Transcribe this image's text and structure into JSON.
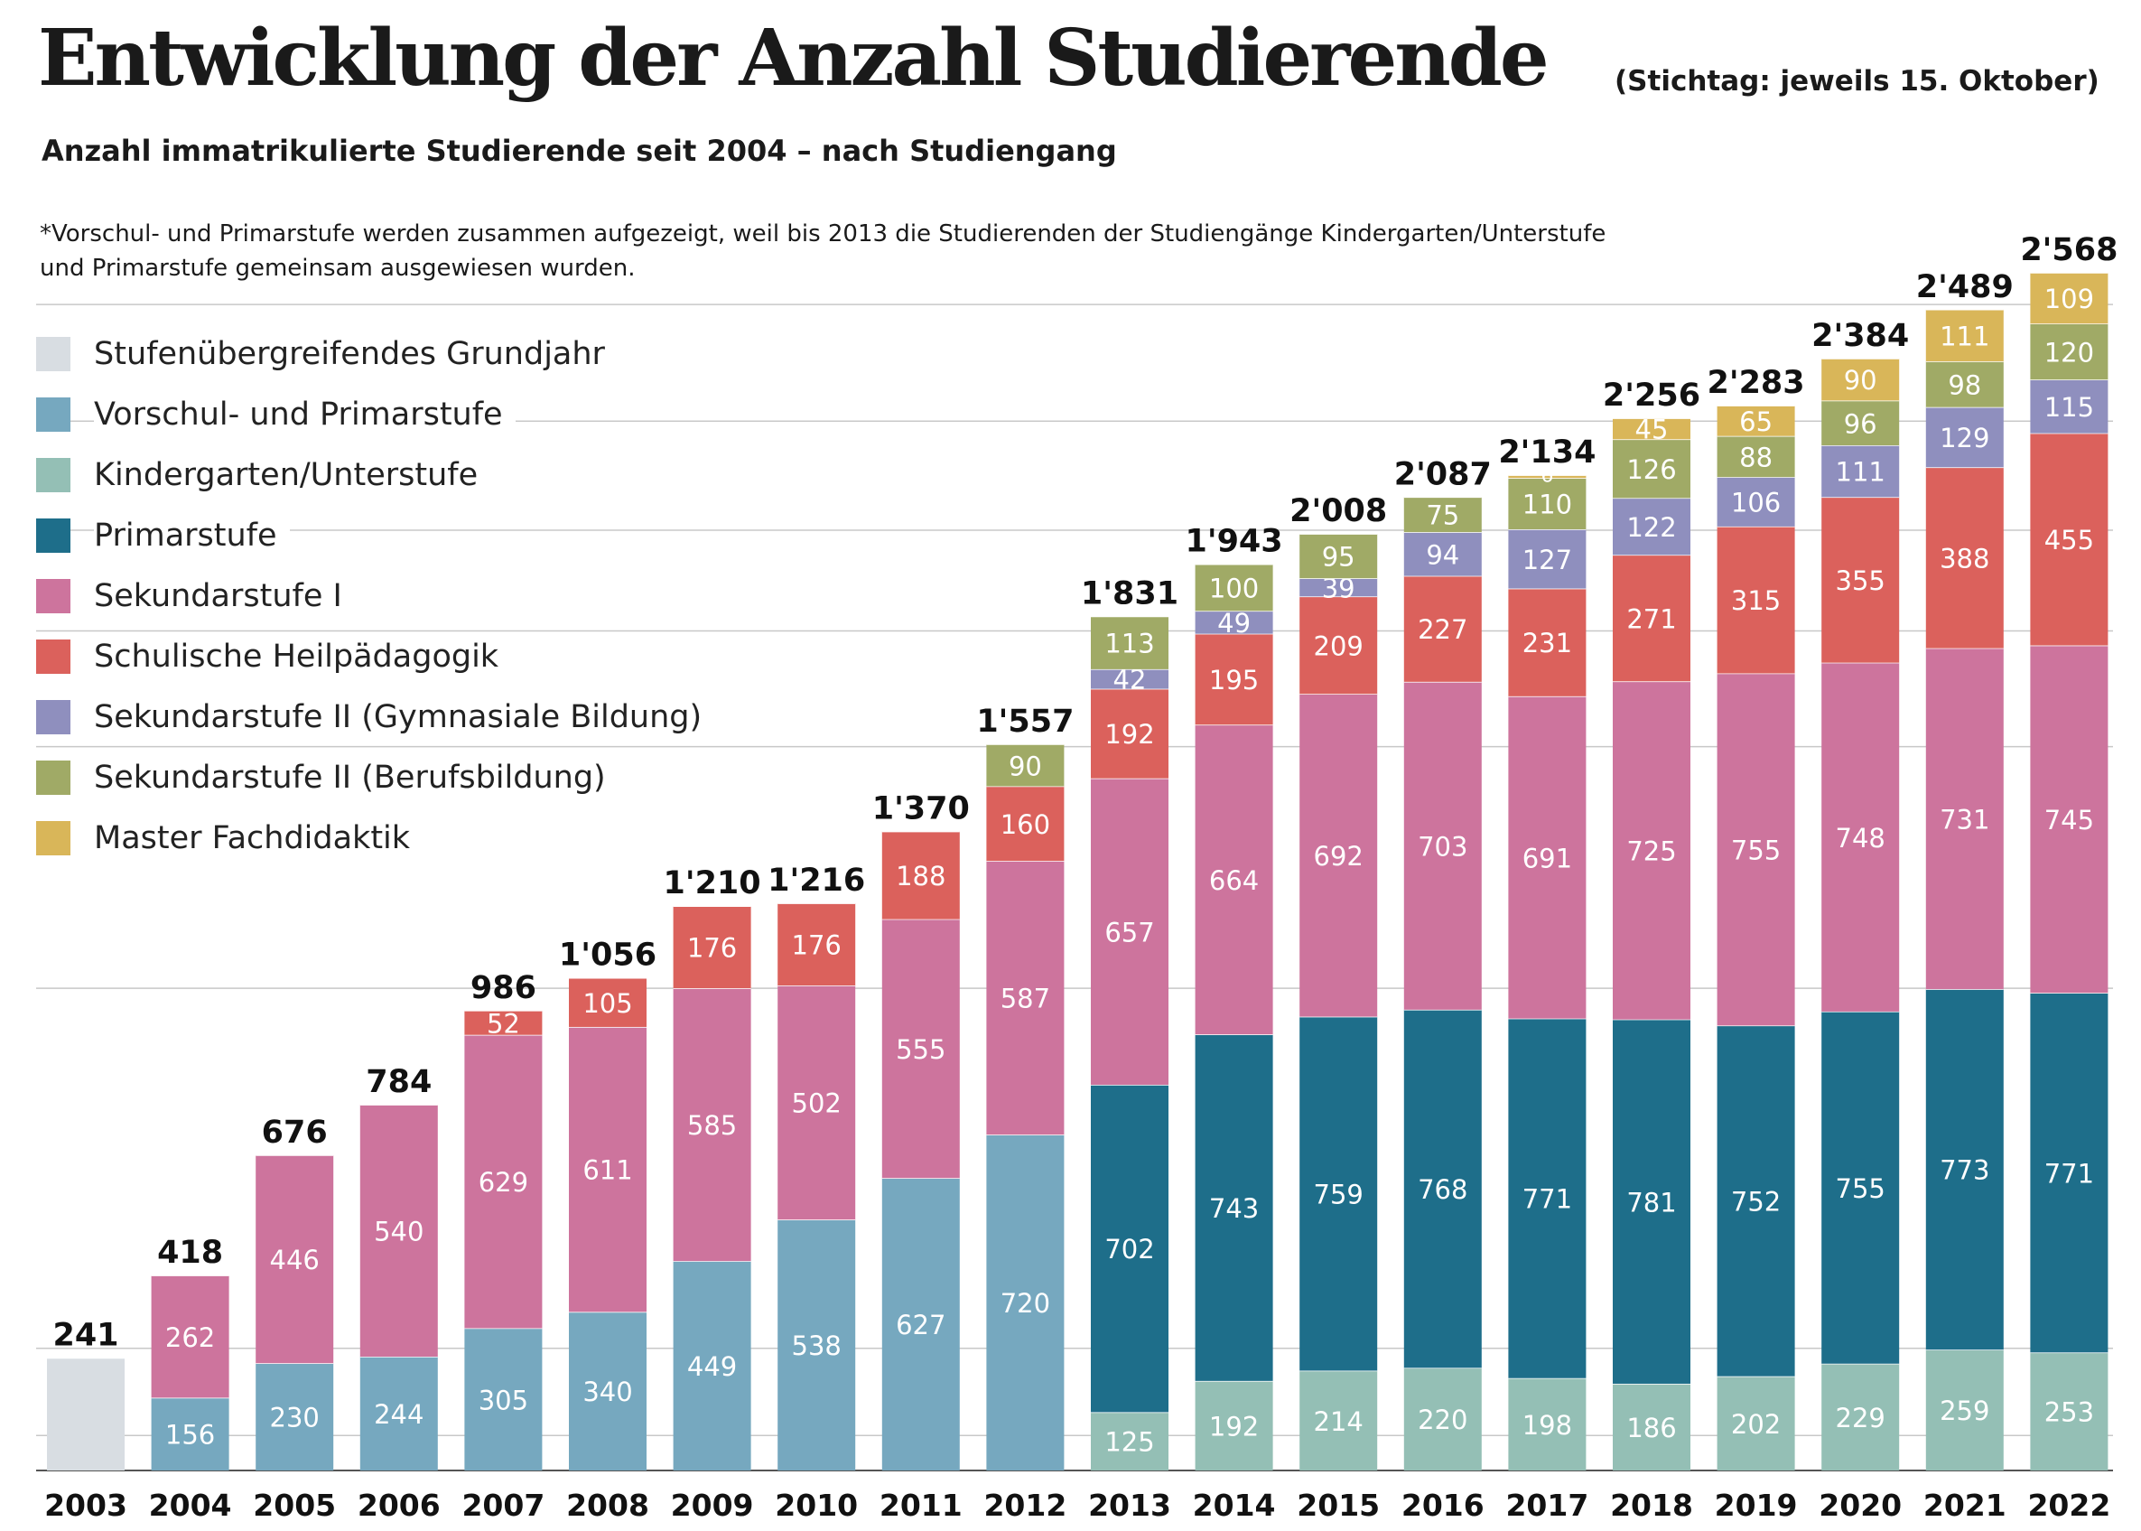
{
  "title": "Entwicklung der Anzahl Studierende",
  "note": "(Stichtag: jeweils 15. Oktober)",
  "subtitle": "Anzahl immatrikulierte Studierende seit 2004 – nach Studiengang",
  "footnote": "*Vorschul- und Primarstufe werden zusammen aufgezeigt, weil bis 2013 die Studierenden der Studiengänge Kindergarten/Unterstufe und Primarstufe gemeinsam ausgewiesen wurden.",
  "chart_data": {
    "type": "bar",
    "stacked": true,
    "title": "Entwicklung der Anzahl Studierende",
    "subtitle": "Anzahl immatrikulierte Studierende seit 2004 – nach Studiengang",
    "categories": [
      "2003",
      "2004",
      "2005",
      "2006",
      "2007",
      "2008",
      "2009",
      "2010",
      "2011",
      "2012",
      "2013",
      "2014",
      "2015",
      "2016",
      "2017",
      "2018",
      "2019",
      "2020",
      "2021",
      "2022"
    ],
    "totals": [
      "241",
      "418",
      "676",
      "784",
      "986",
      "1'056",
      "1'210",
      "1'216",
      "1'370",
      "1'557",
      "1'831",
      "1'943",
      "2'008",
      "2'087",
      "2'134",
      "2'256",
      "2'283",
      "2'384",
      "2'489",
      "2'568"
    ],
    "ylim": [
      0,
      2700
    ],
    "grid": true,
    "legend_position": "left",
    "series": [
      {
        "name": "Stufenübergreifendes Grundjahr",
        "color": "#d8dde2",
        "label_color": "#ffffff",
        "values": [
          241,
          null,
          null,
          null,
          null,
          null,
          null,
          null,
          null,
          null,
          null,
          null,
          null,
          null,
          null,
          null,
          null,
          null,
          null,
          null
        ]
      },
      {
        "name": "Vorschul- und Primarstufe",
        "color": "#76a8bf",
        "label_color": "#ffffff",
        "values": [
          null,
          156,
          230,
          244,
          305,
          340,
          449,
          538,
          627,
          720,
          null,
          null,
          null,
          null,
          null,
          null,
          null,
          null,
          null,
          null
        ]
      },
      {
        "name": "Kindergarten/Unterstufe",
        "color": "#94bfb5",
        "label_color": "#ffffff",
        "values": [
          null,
          null,
          null,
          null,
          null,
          null,
          null,
          null,
          null,
          null,
          125,
          192,
          214,
          220,
          198,
          186,
          202,
          229,
          259,
          253
        ]
      },
      {
        "name": "Primarstufe",
        "color": "#1e6e8a",
        "label_color": "#ffffff",
        "values": [
          null,
          null,
          null,
          null,
          null,
          null,
          null,
          null,
          null,
          null,
          702,
          743,
          759,
          768,
          771,
          781,
          752,
          755,
          773,
          771
        ]
      },
      {
        "name": "Sekundarstufe I",
        "color": "#cd749d",
        "label_color": "#ffffff",
        "values": [
          null,
          262,
          446,
          540,
          629,
          611,
          585,
          502,
          555,
          587,
          657,
          664,
          692,
          703,
          691,
          725,
          755,
          748,
          731,
          745
        ]
      },
      {
        "name": "Schulische Heilpädagogik",
        "color": "#db615c",
        "label_color": "#ffffff",
        "values": [
          null,
          null,
          null,
          null,
          52,
          105,
          176,
          176,
          188,
          160,
          192,
          195,
          209,
          227,
          231,
          271,
          315,
          355,
          388,
          455
        ]
      },
      {
        "name": "Sekundarstufe II (Gymnasiale Bildung)",
        "color": "#8f8fbe",
        "label_color": "#ffffff",
        "values": [
          null,
          null,
          null,
          null,
          null,
          null,
          null,
          null,
          null,
          null,
          42,
          49,
          39,
          94,
          127,
          122,
          106,
          111,
          129,
          115
        ]
      },
      {
        "name": "Sekundarstufe II (Berufsbildung)",
        "color": "#a0aa66",
        "label_color": "#ffffff",
        "values": [
          null,
          null,
          null,
          null,
          null,
          null,
          null,
          null,
          null,
          90,
          113,
          100,
          95,
          75,
          110,
          126,
          88,
          96,
          98,
          120
        ]
      },
      {
        "name": "Master Fachdidaktik",
        "color": "#d9b659",
        "label_color": "#ffffff",
        "values": [
          null,
          null,
          null,
          null,
          null,
          null,
          null,
          null,
          null,
          null,
          null,
          null,
          null,
          null,
          6,
          45,
          65,
          90,
          111,
          109
        ]
      }
    ]
  }
}
